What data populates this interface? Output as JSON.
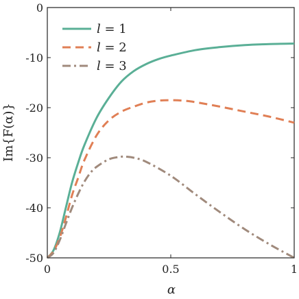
{
  "chart_data": {
    "type": "line",
    "xlabel": "α",
    "ylabel": "Im{F(α)}",
    "xlim": [
      0,
      1
    ],
    "ylim": [
      -50,
      0
    ],
    "xticks": [
      0,
      0.5,
      1
    ],
    "xtick_labels": [
      "0",
      "0.5",
      "1"
    ],
    "yticks": [
      0,
      -10,
      -20,
      -30,
      -40,
      -50
    ],
    "ytick_labels": [
      "0",
      "-10",
      "-20",
      "-30",
      "-40",
      "-50"
    ],
    "grid": false,
    "legend_position": "top-left",
    "series": [
      {
        "name": "l = 1",
        "legend_var": "l",
        "legend_val": "1",
        "color": "#5aaf96",
        "dash": "solid",
        "x": [
          0,
          0.025,
          0.05,
          0.075,
          0.1,
          0.125,
          0.15,
          0.2,
          0.25,
          0.3,
          0.35,
          0.4,
          0.45,
          0.5,
          0.6,
          0.7,
          0.8,
          0.9,
          1.0
        ],
        "y": [
          -50,
          -48.5,
          -45,
          -40,
          -35,
          -31,
          -27.5,
          -22,
          -18,
          -14.8,
          -12.7,
          -11.3,
          -10.3,
          -9.6,
          -8.5,
          -7.9,
          -7.5,
          -7.3,
          -7.2
        ]
      },
      {
        "name": "l = 2",
        "legend_var": "l",
        "legend_val": "2",
        "color": "#e07f55",
        "dash": "dashed",
        "x": [
          0,
          0.025,
          0.05,
          0.075,
          0.1,
          0.125,
          0.15,
          0.2,
          0.25,
          0.3,
          0.35,
          0.4,
          0.45,
          0.5,
          0.55,
          0.6,
          0.7,
          0.8,
          0.9,
          1.0
        ],
        "y": [
          -50,
          -48.7,
          -46,
          -42,
          -37.5,
          -34,
          -30.5,
          -25.5,
          -22.5,
          -20.8,
          -19.8,
          -19.0,
          -18.6,
          -18.5,
          -18.6,
          -18.9,
          -19.8,
          -20.8,
          -21.8,
          -23.0
        ]
      },
      {
        "name": "l = 3",
        "legend_var": "l",
        "legend_val": "3",
        "color": "#a08a7c",
        "dash": "dashdot",
        "x": [
          0,
          0.025,
          0.05,
          0.075,
          0.1,
          0.125,
          0.15,
          0.175,
          0.2,
          0.25,
          0.3,
          0.32,
          0.35,
          0.4,
          0.5,
          0.6,
          0.7,
          0.8,
          0.9,
          1.0
        ],
        "y": [
          -50,
          -49,
          -46.5,
          -43.2,
          -40,
          -37.2,
          -34.8,
          -33,
          -31.8,
          -30.3,
          -29.8,
          -29.8,
          -30.0,
          -30.8,
          -33.6,
          -37.3,
          -40.9,
          -44.3,
          -47.3,
          -50.0
        ]
      }
    ]
  }
}
